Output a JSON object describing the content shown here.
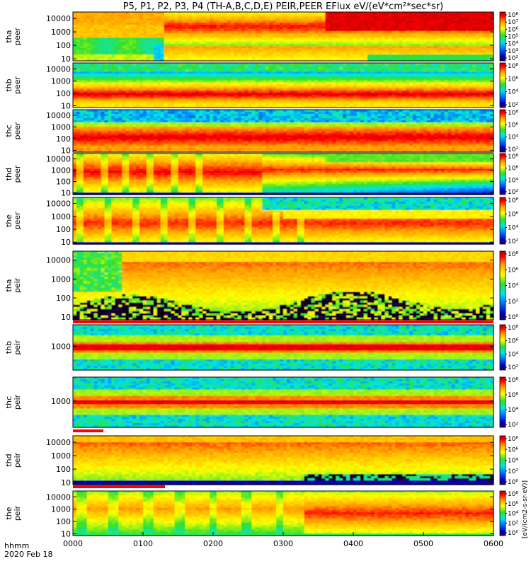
{
  "title": "P5, P1, P2, P3, P4 (TH-A,B,C,D,E) PEIR,PEER EFlux eV/(eV*cm²*sec*sr)",
  "x_axis": {
    "label": "hhmm",
    "date": "2020 Feb 18",
    "ticks": [
      "0000",
      "0100",
      "0200",
      "0300",
      "0400",
      "0500",
      "0600"
    ]
  },
  "colorbar_side_label": "[eV/(cm2-s-sr-eV)]",
  "colors": {
    "fill_black": "#000000",
    "deep_blue": "#00006e",
    "blue": "#0050ff",
    "cyan": "#00e6e6",
    "green": "#30e030",
    "yellow": "#ffff00",
    "orange": "#ffa000",
    "red": "#ff0000",
    "deep_red": "#d40000",
    "flag_red": "#ff0000"
  },
  "chart_data": [
    {
      "type": "heatmap",
      "id": "tha-peer",
      "name": "tha peer",
      "ylabel": [
        "tha",
        "peer"
      ],
      "yscale": "log",
      "ylim": [
        7,
        30000
      ],
      "yticks": [
        "10000",
        "1000",
        "100",
        "10"
      ],
      "colorbar_ticks": [
        "10⁸",
        "10⁷",
        "10⁶",
        "10⁵",
        "10⁴",
        "10³",
        "10²"
      ],
      "colorbar_range_log": [
        2,
        8
      ]
    },
    {
      "type": "heatmap",
      "id": "thb-peer",
      "name": "thb peer",
      "ylabel": [
        "thb",
        "peer"
      ],
      "yscale": "log",
      "ylim": [
        7,
        30000
      ],
      "yticks": [
        "10000",
        "1000",
        "100",
        "10"
      ],
      "colorbar_ticks": [
        "10⁸",
        "10⁶",
        "10⁴",
        "10²"
      ],
      "colorbar_range_log": [
        1,
        8
      ]
    },
    {
      "type": "heatmap",
      "id": "thc-peer",
      "name": "thc peer",
      "ylabel": [
        "thc",
        "peer"
      ],
      "yscale": "log",
      "ylim": [
        7,
        30000
      ],
      "yticks": [
        "10000",
        "1000",
        "100",
        "10"
      ],
      "colorbar_ticks": [
        "10⁸",
        "10⁶",
        "10⁴",
        "10²"
      ],
      "colorbar_range_log": [
        1,
        8
      ]
    },
    {
      "type": "heatmap",
      "id": "thd-peer",
      "name": "thd peer",
      "ylabel": [
        "thd",
        "peer"
      ],
      "yscale": "log",
      "ylim": [
        7,
        30000
      ],
      "yticks": [
        "10000",
        "1000",
        "100",
        "10"
      ],
      "colorbar_ticks": [
        "10⁸",
        "10⁶",
        "10⁴",
        "10²"
      ],
      "colorbar_range_log": [
        1,
        8
      ]
    },
    {
      "type": "heatmap",
      "id": "the-peer",
      "name": "the peer",
      "ylabel": [
        "the",
        "peer"
      ],
      "yscale": "log",
      "ylim": [
        7,
        30000
      ],
      "yticks": [
        "10000",
        "1000",
        "100",
        "10"
      ],
      "colorbar_ticks": [
        "10⁸",
        "10⁶",
        "10⁴",
        "10²"
      ],
      "colorbar_range_log": [
        1,
        8
      ]
    },
    {
      "type": "heatmap",
      "id": "tha-peir",
      "name": "tha peir",
      "ylabel": [
        "tha",
        "peir"
      ],
      "yscale": "log",
      "ylim": [
        7,
        30000
      ],
      "yticks": [
        "10000",
        "1000",
        "100",
        "10"
      ],
      "colorbar_ticks": [
        "10⁸",
        "10⁶",
        "10⁴",
        "10²",
        "10⁰"
      ],
      "colorbar_range_log": [
        0,
        8
      ]
    },
    {
      "type": "heatmap",
      "id": "thb-peir",
      "name": "thb peir",
      "ylabel": [
        "thb",
        "peir"
      ],
      "yscale": "log",
      "ylim": [
        300,
        3000
      ],
      "yticks": [
        "1000"
      ],
      "colorbar_ticks": [
        "10⁸",
        "10⁶",
        "10⁴",
        "10²"
      ],
      "colorbar_range_log": [
        1,
        8
      ]
    },
    {
      "type": "heatmap",
      "id": "thc-peir",
      "name": "thc peir",
      "ylabel": [
        "thc",
        "peir"
      ],
      "yscale": "log",
      "ylim": [
        300,
        3000
      ],
      "yticks": [
        "1000"
      ],
      "colorbar_ticks": [
        "10⁸",
        "10⁶",
        "10⁴",
        "10²"
      ],
      "colorbar_range_log": [
        1,
        8
      ]
    },
    {
      "type": "heatmap",
      "id": "thd-peir",
      "name": "thd peir",
      "ylabel": [
        "thd",
        "peir"
      ],
      "yscale": "log",
      "ylim": [
        7,
        30000
      ],
      "yticks": [
        "10000",
        "1000",
        "100",
        "10"
      ],
      "colorbar_ticks": [
        "10⁸",
        "10⁶",
        "10⁴",
        "10²",
        "10⁰"
      ],
      "colorbar_range_log": [
        0,
        8
      ]
    },
    {
      "type": "heatmap",
      "id": "the-peir",
      "name": "the peir",
      "ylabel": [
        "the",
        "peir"
      ],
      "yscale": "log",
      "ylim": [
        7,
        30000
      ],
      "yticks": [
        "10000",
        "1000",
        "100",
        "10"
      ],
      "colorbar_ticks": [
        "10⁸",
        "10⁶",
        "10⁴",
        "10²",
        "10⁰"
      ],
      "colorbar_range_log": [
        0,
        8
      ]
    }
  ]
}
